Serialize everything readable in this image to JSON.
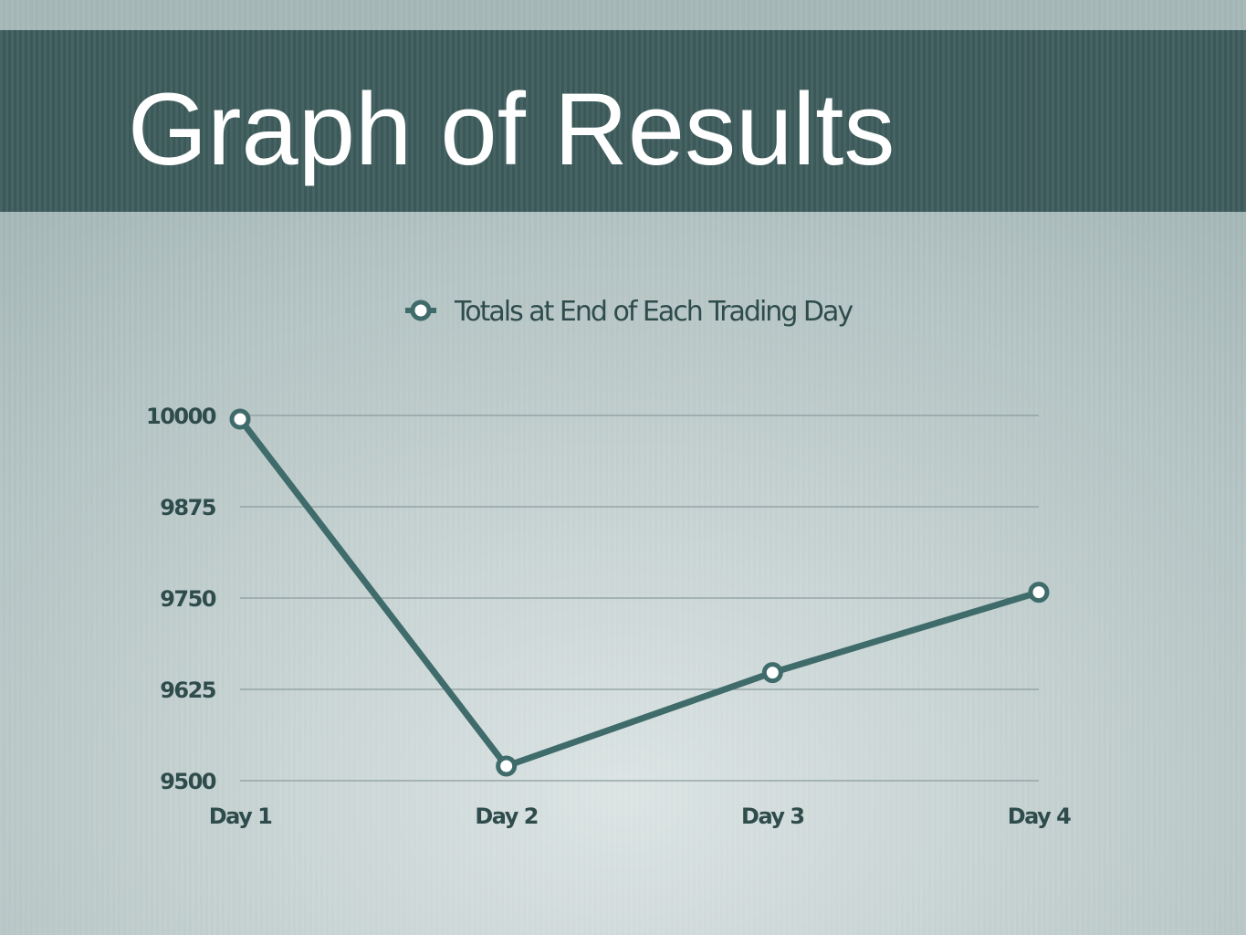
{
  "slide": {
    "title": "Graph of Results"
  },
  "chart_data": {
    "type": "line",
    "categories": [
      "Day 1",
      "Day 2",
      "Day 3",
      "Day 4"
    ],
    "series": [
      {
        "name": "Totals at End of Each Trading Day",
        "color": "#3f6b6b",
        "values": [
          9995,
          9520,
          9648,
          9758
        ]
      }
    ],
    "ylim": [
      9500,
      10000
    ],
    "yticks": [
      9500,
      9625,
      9750,
      9875,
      10000
    ],
    "grid": true,
    "legend": "top"
  }
}
